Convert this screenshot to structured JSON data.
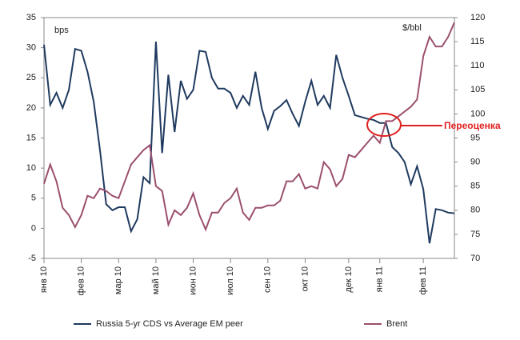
{
  "chart_data": {
    "type": "line",
    "ylabel": "bps",
    "y2label": "$/bbl",
    "categories": [
      "янв 10",
      null,
      null,
      null,
      null,
      null,
      "фев 10",
      null,
      null,
      null,
      null,
      null,
      "мар 10",
      null,
      null,
      null,
      null,
      null,
      "май 10",
      null,
      null,
      null,
      null,
      null,
      "июн 10",
      null,
      null,
      null,
      null,
      null,
      "июл 10",
      null,
      null,
      null,
      null,
      null,
      "сен 10",
      null,
      null,
      null,
      null,
      null,
      "окт 10",
      null,
      null,
      null,
      null,
      null,
      null,
      "дек 10",
      null,
      null,
      null,
      null,
      "янв 11",
      null,
      null,
      null,
      null,
      null,
      null,
      "фев 11",
      null,
      null,
      null,
      null,
      null
    ],
    "series": [
      {
        "name": "Russia 5-yr CDS vs Average EM peer",
        "color": "#1f3a5f",
        "axis": "y",
        "values": [
          30.5,
          20.5,
          22.5,
          20,
          23,
          29.8,
          29.5,
          26,
          21,
          13,
          4,
          3,
          3.5,
          3.5,
          -0.5,
          1.5,
          8.5,
          7.5,
          31,
          12.5,
          25.5,
          16,
          24.5,
          21.5,
          23,
          29.5,
          29.3,
          25,
          23.2,
          23.2,
          22.5,
          20,
          22,
          20.5,
          26,
          20,
          16.5,
          19.5,
          20.3,
          21.3,
          19,
          17,
          21,
          24.5,
          20.5,
          22,
          20,
          28.8,
          25,
          22,
          18.8,
          18.5,
          18.2,
          18,
          17.5,
          17.5,
          13.5,
          12.5,
          11,
          7.3,
          10.3,
          6.5,
          -2.5,
          3.2,
          3,
          2.6,
          2.5
        ]
      },
      {
        "name": "Brent",
        "color": "#9b4f6e",
        "axis": "y2",
        "values": [
          85.5,
          89.5,
          86,
          80.5,
          79,
          76.5,
          79,
          83,
          82.5,
          84.5,
          84,
          83,
          82.5,
          86,
          89.5,
          91,
          92.5,
          93.5,
          85,
          84,
          77,
          80,
          79,
          80.5,
          83.5,
          79,
          76,
          79.5,
          79.5,
          81.5,
          82.5,
          84.5,
          79.5,
          78,
          80.5,
          80.5,
          81,
          81,
          82,
          86,
          86,
          87.5,
          84.5,
          85,
          84.5,
          90,
          88.5,
          85,
          86.5,
          91.5,
          91,
          92.5,
          94,
          95.5,
          94,
          98.5,
          98.5,
          99.5,
          100.5,
          101.5,
          103,
          112,
          116,
          114,
          114,
          116,
          119
        ]
      }
    ],
    "ylim": [
      -5,
      35
    ],
    "yticks": [
      -5,
      0,
      5,
      10,
      15,
      20,
      25,
      30,
      35
    ],
    "y2lim": [
      70,
      120
    ],
    "y2ticks": [
      70,
      75,
      80,
      85,
      90,
      95,
      100,
      105,
      110,
      115,
      120
    ],
    "annotations": [
      {
        "text": "Переоценка",
        "color": "#e02020"
      }
    ],
    "legend": "bottom"
  }
}
